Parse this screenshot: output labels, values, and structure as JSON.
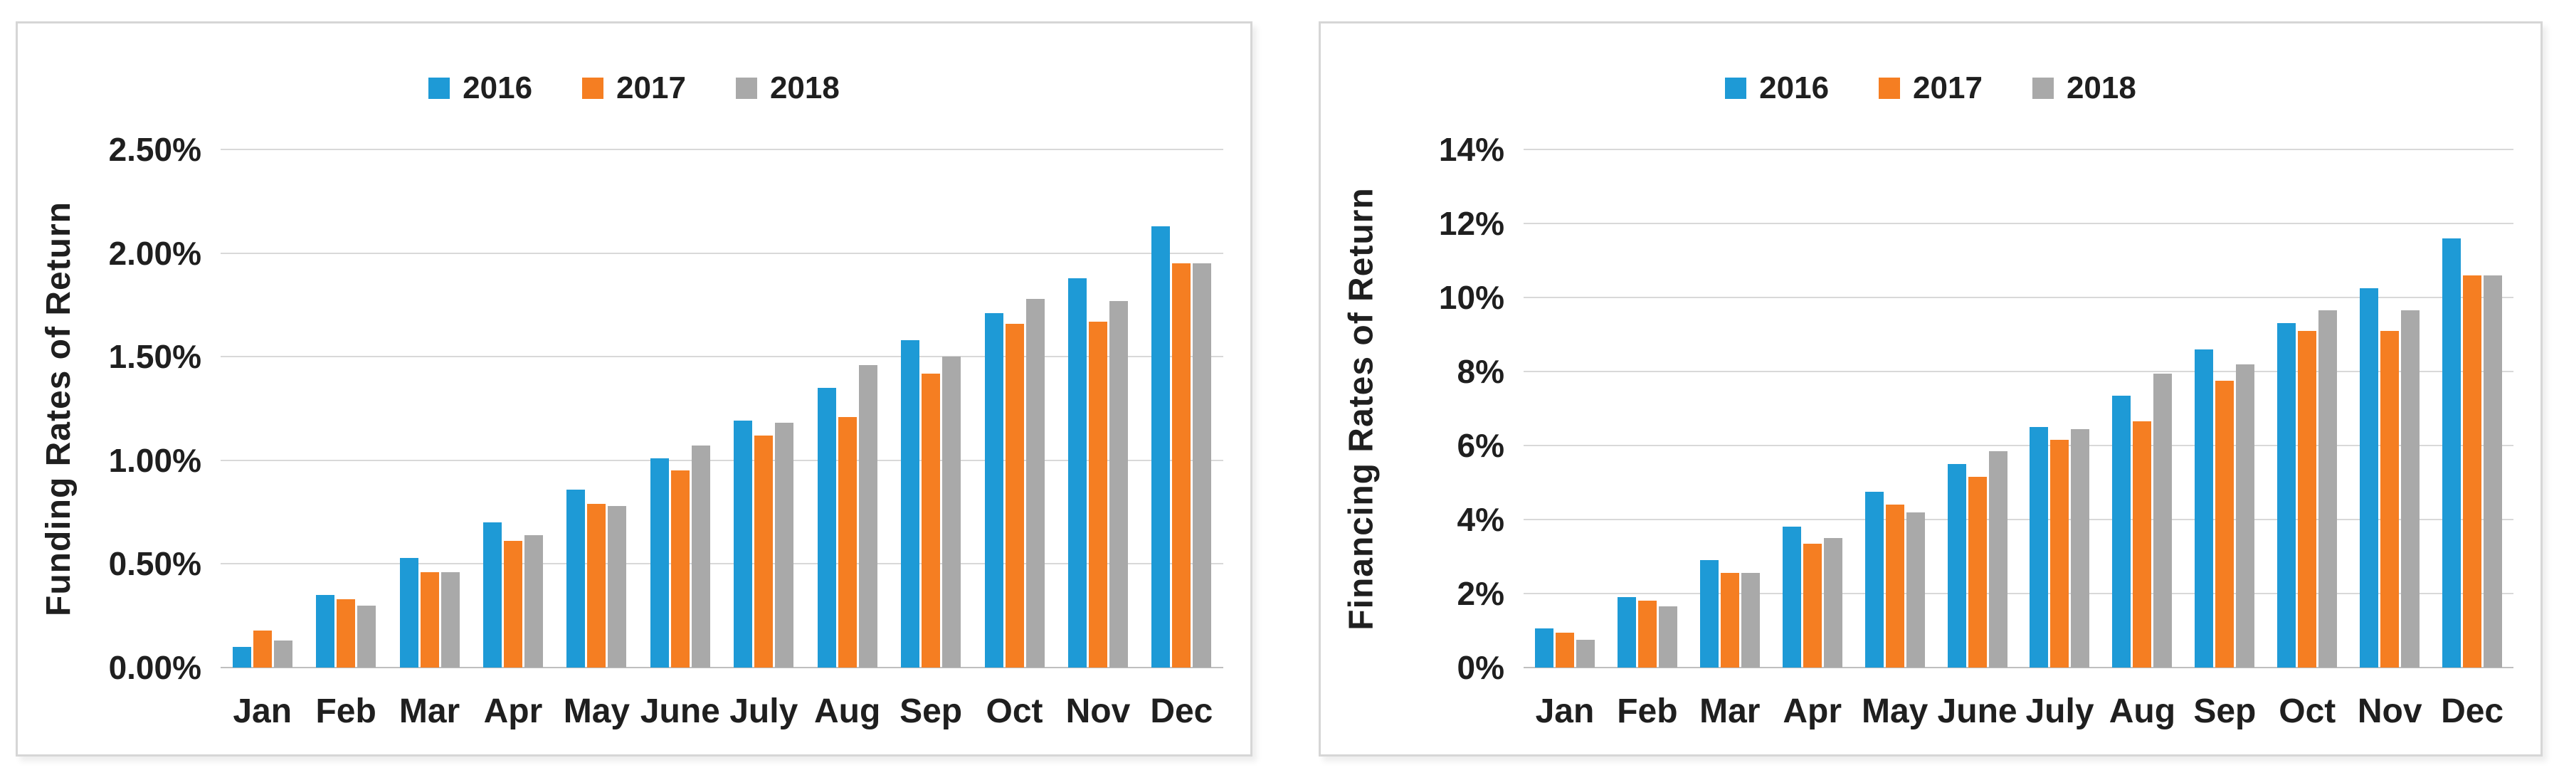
{
  "page": {
    "background": "#ffffff"
  },
  "colors": {
    "series_2016": "#1e9ad6",
    "series_2017": "#f57e22",
    "series_2018": "#a9a9a9",
    "gridline": "#d9d9d9",
    "axis_text": "#1f1f1f",
    "panel_border": "#d6d6d6"
  },
  "chart_data": [
    {
      "type": "bar",
      "title": "",
      "xlabel": "",
      "ylabel": "Funding Rates of Return",
      "legend_position": "top-center",
      "grid": true,
      "ylim": [
        0,
        2.5
      ],
      "yticks": [
        0,
        0.5,
        1.0,
        1.5,
        2.0,
        2.5
      ],
      "ytick_labels": [
        "0.00%",
        "0.50%",
        "1.00%",
        "1.50%",
        "2.00%",
        "2.50%"
      ],
      "categories": [
        "Jan",
        "Feb",
        "Mar",
        "Apr",
        "May",
        "June",
        "July",
        "Aug",
        "Sep",
        "Oct",
        "Nov",
        "Dec"
      ],
      "series": [
        {
          "name": "2016",
          "color": "#1e9ad6",
          "values": [
            0.1,
            0.35,
            0.53,
            0.7,
            0.86,
            1.01,
            1.19,
            1.35,
            1.58,
            1.71,
            1.88,
            2.13
          ]
        },
        {
          "name": "2017",
          "color": "#f57e22",
          "values": [
            0.18,
            0.33,
            0.46,
            0.61,
            0.79,
            0.95,
            1.12,
            1.21,
            1.42,
            1.66,
            1.67,
            1.95
          ]
        },
        {
          "name": "2018",
          "color": "#a9a9a9",
          "values": [
            0.13,
            0.3,
            0.46,
            0.64,
            0.78,
            1.07,
            1.18,
            1.46,
            1.5,
            1.78,
            1.77,
            1.95
          ]
        }
      ]
    },
    {
      "type": "bar",
      "title": "",
      "xlabel": "",
      "ylabel": "Financing Rates of Return",
      "legend_position": "top-center",
      "grid": true,
      "ylim": [
        0,
        14
      ],
      "yticks": [
        0,
        2,
        4,
        6,
        8,
        10,
        12,
        14
      ],
      "ytick_labels": [
        "0%",
        "2%",
        "4%",
        "6%",
        "8%",
        "10%",
        "12%",
        "14%"
      ],
      "categories": [
        "Jan",
        "Feb",
        "Mar",
        "Apr",
        "May",
        "June",
        "July",
        "Aug",
        "Sep",
        "Oct",
        "Nov",
        "Dec"
      ],
      "series": [
        {
          "name": "2016",
          "color": "#1e9ad6",
          "values": [
            1.05,
            1.9,
            2.9,
            3.8,
            4.75,
            5.5,
            6.5,
            7.35,
            8.6,
            9.3,
            10.25,
            11.6
          ]
        },
        {
          "name": "2017",
          "color": "#f57e22",
          "values": [
            0.95,
            1.8,
            2.55,
            3.35,
            4.4,
            5.15,
            6.15,
            6.65,
            7.75,
            9.1,
            9.1,
            10.6
          ]
        },
        {
          "name": "2018",
          "color": "#a9a9a9",
          "values": [
            0.75,
            1.65,
            2.55,
            3.5,
            4.2,
            5.85,
            6.45,
            7.95,
            8.2,
            9.65,
            9.65,
            10.6
          ]
        }
      ]
    }
  ]
}
